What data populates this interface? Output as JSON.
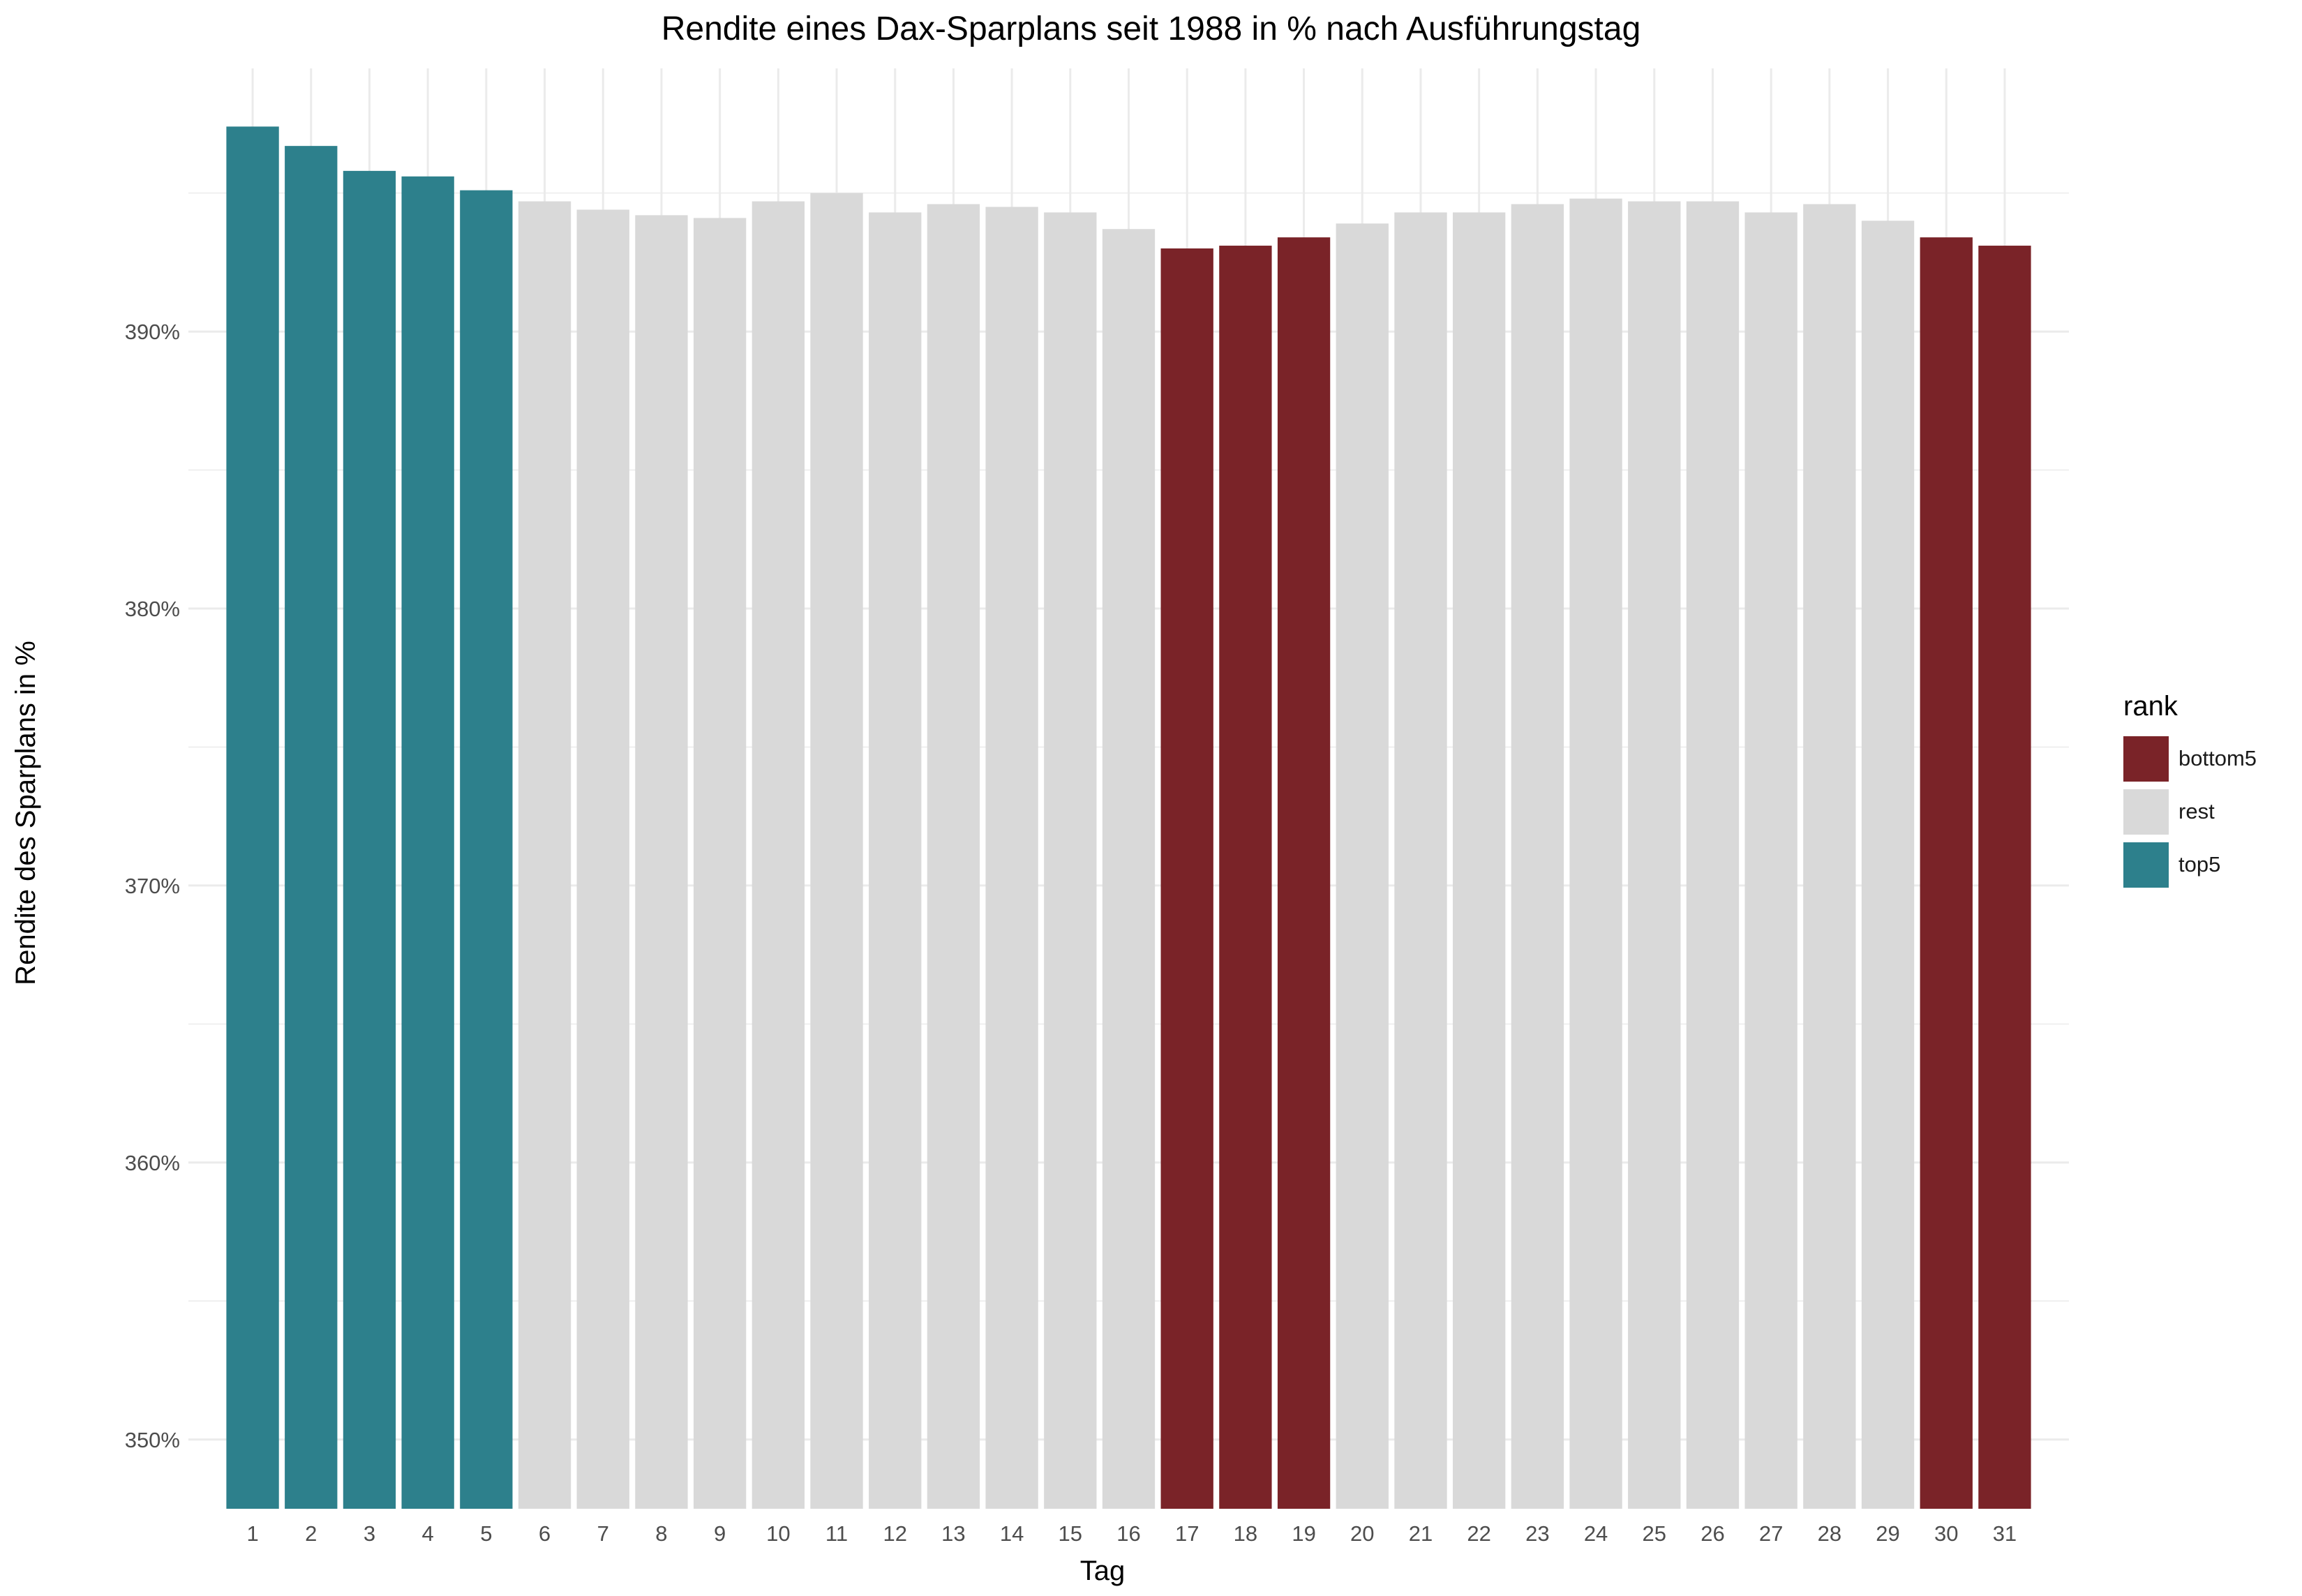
{
  "chart_data": {
    "type": "bar",
    "title": "Rendite eines Dax-Sparplans seit 1988 in % nach Ausführungstag",
    "xlabel": "Tag",
    "ylabel": "Rendite des Sparplans in %",
    "categories": [
      "1",
      "2",
      "3",
      "4",
      "5",
      "6",
      "7",
      "8",
      "9",
      "10",
      "11",
      "12",
      "13",
      "14",
      "15",
      "16",
      "17",
      "18",
      "19",
      "20",
      "21",
      "22",
      "23",
      "24",
      "25",
      "26",
      "27",
      "28",
      "29",
      "30",
      "31"
    ],
    "values": [
      397.4,
      396.7,
      395.8,
      395.6,
      395.1,
      394.7,
      394.4,
      394.2,
      394.1,
      394.7,
      395.0,
      394.3,
      394.6,
      394.5,
      394.3,
      393.7,
      393.0,
      393.1,
      393.4,
      393.9,
      394.3,
      394.3,
      394.6,
      394.8,
      394.7,
      394.7,
      394.3,
      394.6,
      394.0,
      393.4,
      393.1
    ],
    "groups": [
      "top5",
      "top5",
      "top5",
      "top5",
      "top5",
      "rest",
      "rest",
      "rest",
      "rest",
      "rest",
      "rest",
      "rest",
      "rest",
      "rest",
      "rest",
      "rest",
      "bottom5",
      "bottom5",
      "bottom5",
      "rest",
      "rest",
      "rest",
      "rest",
      "rest",
      "rest",
      "rest",
      "rest",
      "rest",
      "rest",
      "bottom5",
      "bottom5"
    ],
    "ylim": [
      347.5,
      399.5
    ],
    "y_ticks": [
      350,
      360,
      370,
      380,
      390
    ],
    "y_tick_labels": [
      "350%",
      "360%",
      "370%",
      "380%",
      "390%"
    ],
    "grid": true,
    "legend": {
      "title": "rank",
      "placement": "right",
      "items": [
        {
          "name": "bottom5",
          "color": "#7a2328"
        },
        {
          "name": "rest",
          "color": "#d9d9d9"
        },
        {
          "name": "top5",
          "color": "#2d808c"
        }
      ]
    },
    "colors": {
      "top5": "#2d808c",
      "rest": "#d9d9d9",
      "bottom5": "#7a2328",
      "grid": "#ebebeb"
    }
  }
}
